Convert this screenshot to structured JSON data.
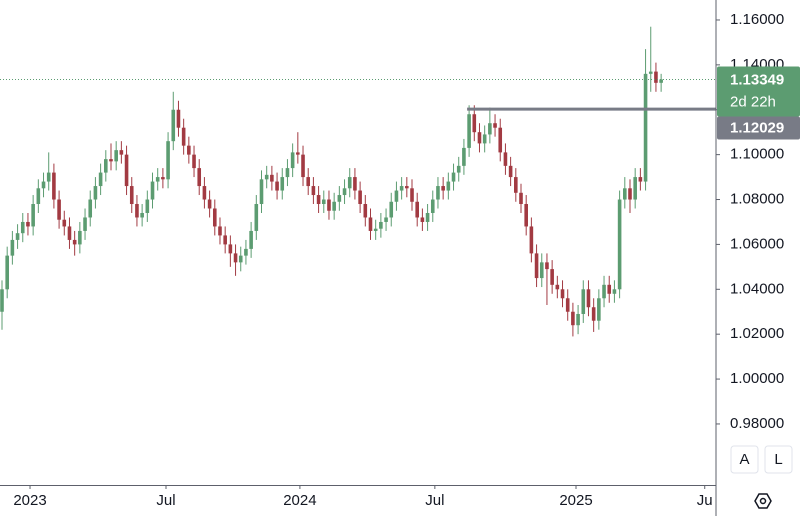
{
  "chart_data": {
    "type": "candlestick",
    "up_color": "#5c9c71",
    "down_color": "#a23a42",
    "ylim": [
      0.9528,
      1.1689
    ],
    "yticks": [
      {
        "value": 1.16,
        "label": "1.16000"
      },
      {
        "value": 1.14,
        "label": "1.14000"
      },
      {
        "value": 1.12,
        "label": "1.12000"
      },
      {
        "value": 1.1,
        "label": "1.10000"
      },
      {
        "value": 1.08,
        "label": "1.08000"
      },
      {
        "value": 1.06,
        "label": "1.06000"
      },
      {
        "value": 1.04,
        "label": "1.04000"
      },
      {
        "value": 1.02,
        "label": "1.02000"
      },
      {
        "value": 1.0,
        "label": "1.00000"
      },
      {
        "value": 0.98,
        "label": "0.98000"
      }
    ],
    "xticks": [
      {
        "value": 5.4,
        "label": "2023"
      },
      {
        "value": 31.6,
        "label": "Jul"
      },
      {
        "value": 57.4,
        "label": "2024"
      },
      {
        "value": 83.4,
        "label": "Jul"
      },
      {
        "value": 110.6,
        "label": "2025"
      },
      {
        "value": 135.4,
        "label": "Ju"
      }
    ],
    "hline": 1.12029,
    "countdown": "2d 22h",
    "buttons": [
      "A",
      "L"
    ],
    "ohlc": [
      [
        1.03,
        1.044,
        1.022,
        1.04
      ],
      [
        1.04,
        1.059,
        1.036,
        1.055
      ],
      [
        1.055,
        1.066,
        1.051,
        1.062
      ],
      [
        1.062,
        1.069,
        1.058,
        1.065
      ],
      [
        1.065,
        1.074,
        1.061,
        1.07
      ],
      [
        1.07,
        1.074,
        1.064,
        1.068
      ],
      [
        1.068,
        1.082,
        1.064,
        1.078
      ],
      [
        1.078,
        1.089,
        1.074,
        1.085
      ],
      [
        1.085,
        1.092,
        1.081,
        1.088
      ],
      [
        1.088,
        1.101,
        1.084,
        1.092
      ],
      [
        1.092,
        1.096,
        1.076,
        1.08
      ],
      [
        1.08,
        1.084,
        1.067,
        1.071
      ],
      [
        1.071,
        1.075,
        1.064,
        1.068
      ],
      [
        1.068,
        1.072,
        1.058,
        1.062
      ],
      [
        1.062,
        1.066,
        1.055,
        1.06
      ],
      [
        1.06,
        1.07,
        1.056,
        1.066
      ],
      [
        1.066,
        1.076,
        1.062,
        1.072
      ],
      [
        1.072,
        1.084,
        1.068,
        1.08
      ],
      [
        1.08,
        1.09,
        1.076,
        1.086
      ],
      [
        1.086,
        1.096,
        1.082,
        1.092
      ],
      [
        1.092,
        1.102,
        1.088,
        1.098
      ],
      [
        1.098,
        1.105,
        1.093,
        1.097
      ],
      [
        1.097,
        1.106,
        1.093,
        1.102
      ],
      [
        1.102,
        1.106,
        1.096,
        1.1
      ],
      [
        1.1,
        1.104,
        1.082,
        1.086
      ],
      [
        1.086,
        1.09,
        1.074,
        1.078
      ],
      [
        1.078,
        1.082,
        1.068,
        1.072
      ],
      [
        1.072,
        1.078,
        1.068,
        1.074
      ],
      [
        1.074,
        1.084,
        1.07,
        1.08
      ],
      [
        1.08,
        1.092,
        1.076,
        1.088
      ],
      [
        1.088,
        1.094,
        1.084,
        1.09
      ],
      [
        1.09,
        1.094,
        1.085,
        1.089
      ],
      [
        1.089,
        1.11,
        1.085,
        1.106
      ],
      [
        1.106,
        1.128,
        1.102,
        1.12
      ],
      [
        1.12,
        1.124,
        1.108,
        1.112
      ],
      [
        1.112,
        1.116,
        1.1,
        1.104
      ],
      [
        1.104,
        1.108,
        1.096,
        1.1
      ],
      [
        1.1,
        1.104,
        1.09,
        1.094
      ],
      [
        1.094,
        1.098,
        1.082,
        1.086
      ],
      [
        1.086,
        1.09,
        1.076,
        1.08
      ],
      [
        1.08,
        1.084,
        1.072,
        1.076
      ],
      [
        1.076,
        1.08,
        1.064,
        1.068
      ],
      [
        1.068,
        1.072,
        1.06,
        1.064
      ],
      [
        1.064,
        1.068,
        1.056,
        1.06
      ],
      [
        1.06,
        1.064,
        1.05,
        1.056
      ],
      [
        1.056,
        1.06,
        1.046,
        1.052
      ],
      [
        1.052,
        1.059,
        1.048,
        1.055
      ],
      [
        1.055,
        1.062,
        1.051,
        1.058
      ],
      [
        1.058,
        1.07,
        1.054,
        1.066
      ],
      [
        1.066,
        1.082,
        1.062,
        1.078
      ],
      [
        1.078,
        1.093,
        1.074,
        1.089
      ],
      [
        1.089,
        1.095,
        1.085,
        1.091
      ],
      [
        1.091,
        1.095,
        1.084,
        1.088
      ],
      [
        1.088,
        1.092,
        1.08,
        1.084
      ],
      [
        1.084,
        1.094,
        1.08,
        1.09
      ],
      [
        1.09,
        1.098,
        1.086,
        1.094
      ],
      [
        1.094,
        1.105,
        1.09,
        1.101
      ],
      [
        1.101,
        1.11,
        1.096,
        1.1
      ],
      [
        1.1,
        1.104,
        1.086,
        1.09
      ],
      [
        1.09,
        1.094,
        1.082,
        1.086
      ],
      [
        1.086,
        1.09,
        1.078,
        1.082
      ],
      [
        1.082,
        1.086,
        1.074,
        1.078
      ],
      [
        1.078,
        1.084,
        1.074,
        1.08
      ],
      [
        1.08,
        1.084,
        1.071,
        1.075
      ],
      [
        1.075,
        1.083,
        1.071,
        1.079
      ],
      [
        1.079,
        1.086,
        1.075,
        1.082
      ],
      [
        1.082,
        1.089,
        1.078,
        1.085
      ],
      [
        1.085,
        1.094,
        1.081,
        1.09
      ],
      [
        1.09,
        1.094,
        1.08,
        1.084
      ],
      [
        1.084,
        1.088,
        1.074,
        1.078
      ],
      [
        1.078,
        1.082,
        1.068,
        1.072
      ],
      [
        1.072,
        1.076,
        1.062,
        1.066
      ],
      [
        1.066,
        1.071,
        1.062,
        1.067
      ],
      [
        1.067,
        1.074,
        1.063,
        1.07
      ],
      [
        1.07,
        1.076,
        1.066,
        1.072
      ],
      [
        1.072,
        1.083,
        1.068,
        1.079
      ],
      [
        1.079,
        1.088,
        1.075,
        1.084
      ],
      [
        1.084,
        1.09,
        1.08,
        1.086
      ],
      [
        1.086,
        1.09,
        1.081,
        1.085
      ],
      [
        1.085,
        1.089,
        1.075,
        1.079
      ],
      [
        1.079,
        1.083,
        1.068,
        1.072
      ],
      [
        1.072,
        1.076,
        1.066,
        1.07
      ],
      [
        1.07,
        1.078,
        1.066,
        1.074
      ],
      [
        1.074,
        1.084,
        1.07,
        1.08
      ],
      [
        1.08,
        1.09,
        1.076,
        1.086
      ],
      [
        1.086,
        1.09,
        1.08,
        1.084
      ],
      [
        1.084,
        1.092,
        1.08,
        1.088
      ],
      [
        1.088,
        1.096,
        1.084,
        1.092
      ],
      [
        1.092,
        1.099,
        1.088,
        1.095
      ],
      [
        1.095,
        1.107,
        1.091,
        1.103
      ],
      [
        1.103,
        1.122,
        1.099,
        1.118
      ],
      [
        1.118,
        1.122,
        1.106,
        1.11
      ],
      [
        1.11,
        1.114,
        1.101,
        1.105
      ],
      [
        1.105,
        1.113,
        1.101,
        1.109
      ],
      [
        1.109,
        1.121,
        1.105,
        1.114
      ],
      [
        1.114,
        1.118,
        1.108,
        1.112
      ],
      [
        1.112,
        1.116,
        1.097,
        1.101
      ],
      [
        1.101,
        1.105,
        1.091,
        1.095
      ],
      [
        1.095,
        1.099,
        1.086,
        1.09
      ],
      [
        1.09,
        1.094,
        1.079,
        1.083
      ],
      [
        1.083,
        1.087,
        1.074,
        1.078
      ],
      [
        1.078,
        1.082,
        1.064,
        1.068
      ],
      [
        1.068,
        1.072,
        1.052,
        1.056
      ],
      [
        1.056,
        1.06,
        1.041,
        1.045
      ],
      [
        1.045,
        1.056,
        1.041,
        1.052
      ],
      [
        1.052,
        1.056,
        1.033,
        1.049
      ],
      [
        1.049,
        1.053,
        1.038,
        1.042
      ],
      [
        1.042,
        1.046,
        1.036,
        1.04
      ],
      [
        1.04,
        1.044,
        1.032,
        1.036
      ],
      [
        1.036,
        1.04,
        1.026,
        1.03
      ],
      [
        1.03,
        1.034,
        1.019,
        1.024
      ],
      [
        1.024,
        1.033,
        1.02,
        1.029
      ],
      [
        1.029,
        1.044,
        1.025,
        1.04
      ],
      [
        1.04,
        1.044,
        1.028,
        1.032
      ],
      [
        1.032,
        1.036,
        1.021,
        1.026
      ],
      [
        1.026,
        1.04,
        1.022,
        1.036
      ],
      [
        1.036,
        1.046,
        1.032,
        1.042
      ],
      [
        1.042,
        1.046,
        1.034,
        1.038
      ],
      [
        1.038,
        1.044,
        1.034,
        1.04
      ],
      [
        1.04,
        1.084,
        1.036,
        1.08
      ],
      [
        1.08,
        1.09,
        1.076,
        1.085
      ],
      [
        1.085,
        1.089,
        1.074,
        1.08
      ],
      [
        1.08,
        1.094,
        1.076,
        1.09
      ],
      [
        1.09,
        1.094,
        1.084,
        1.088
      ],
      [
        1.088,
        1.147,
        1.084,
        1.136
      ],
      [
        1.136,
        1.157,
        1.128,
        1.137
      ],
      [
        1.137,
        1.141,
        1.128,
        1.132
      ],
      [
        1.132,
        1.136,
        1.128,
        1.13349
      ]
    ]
  }
}
